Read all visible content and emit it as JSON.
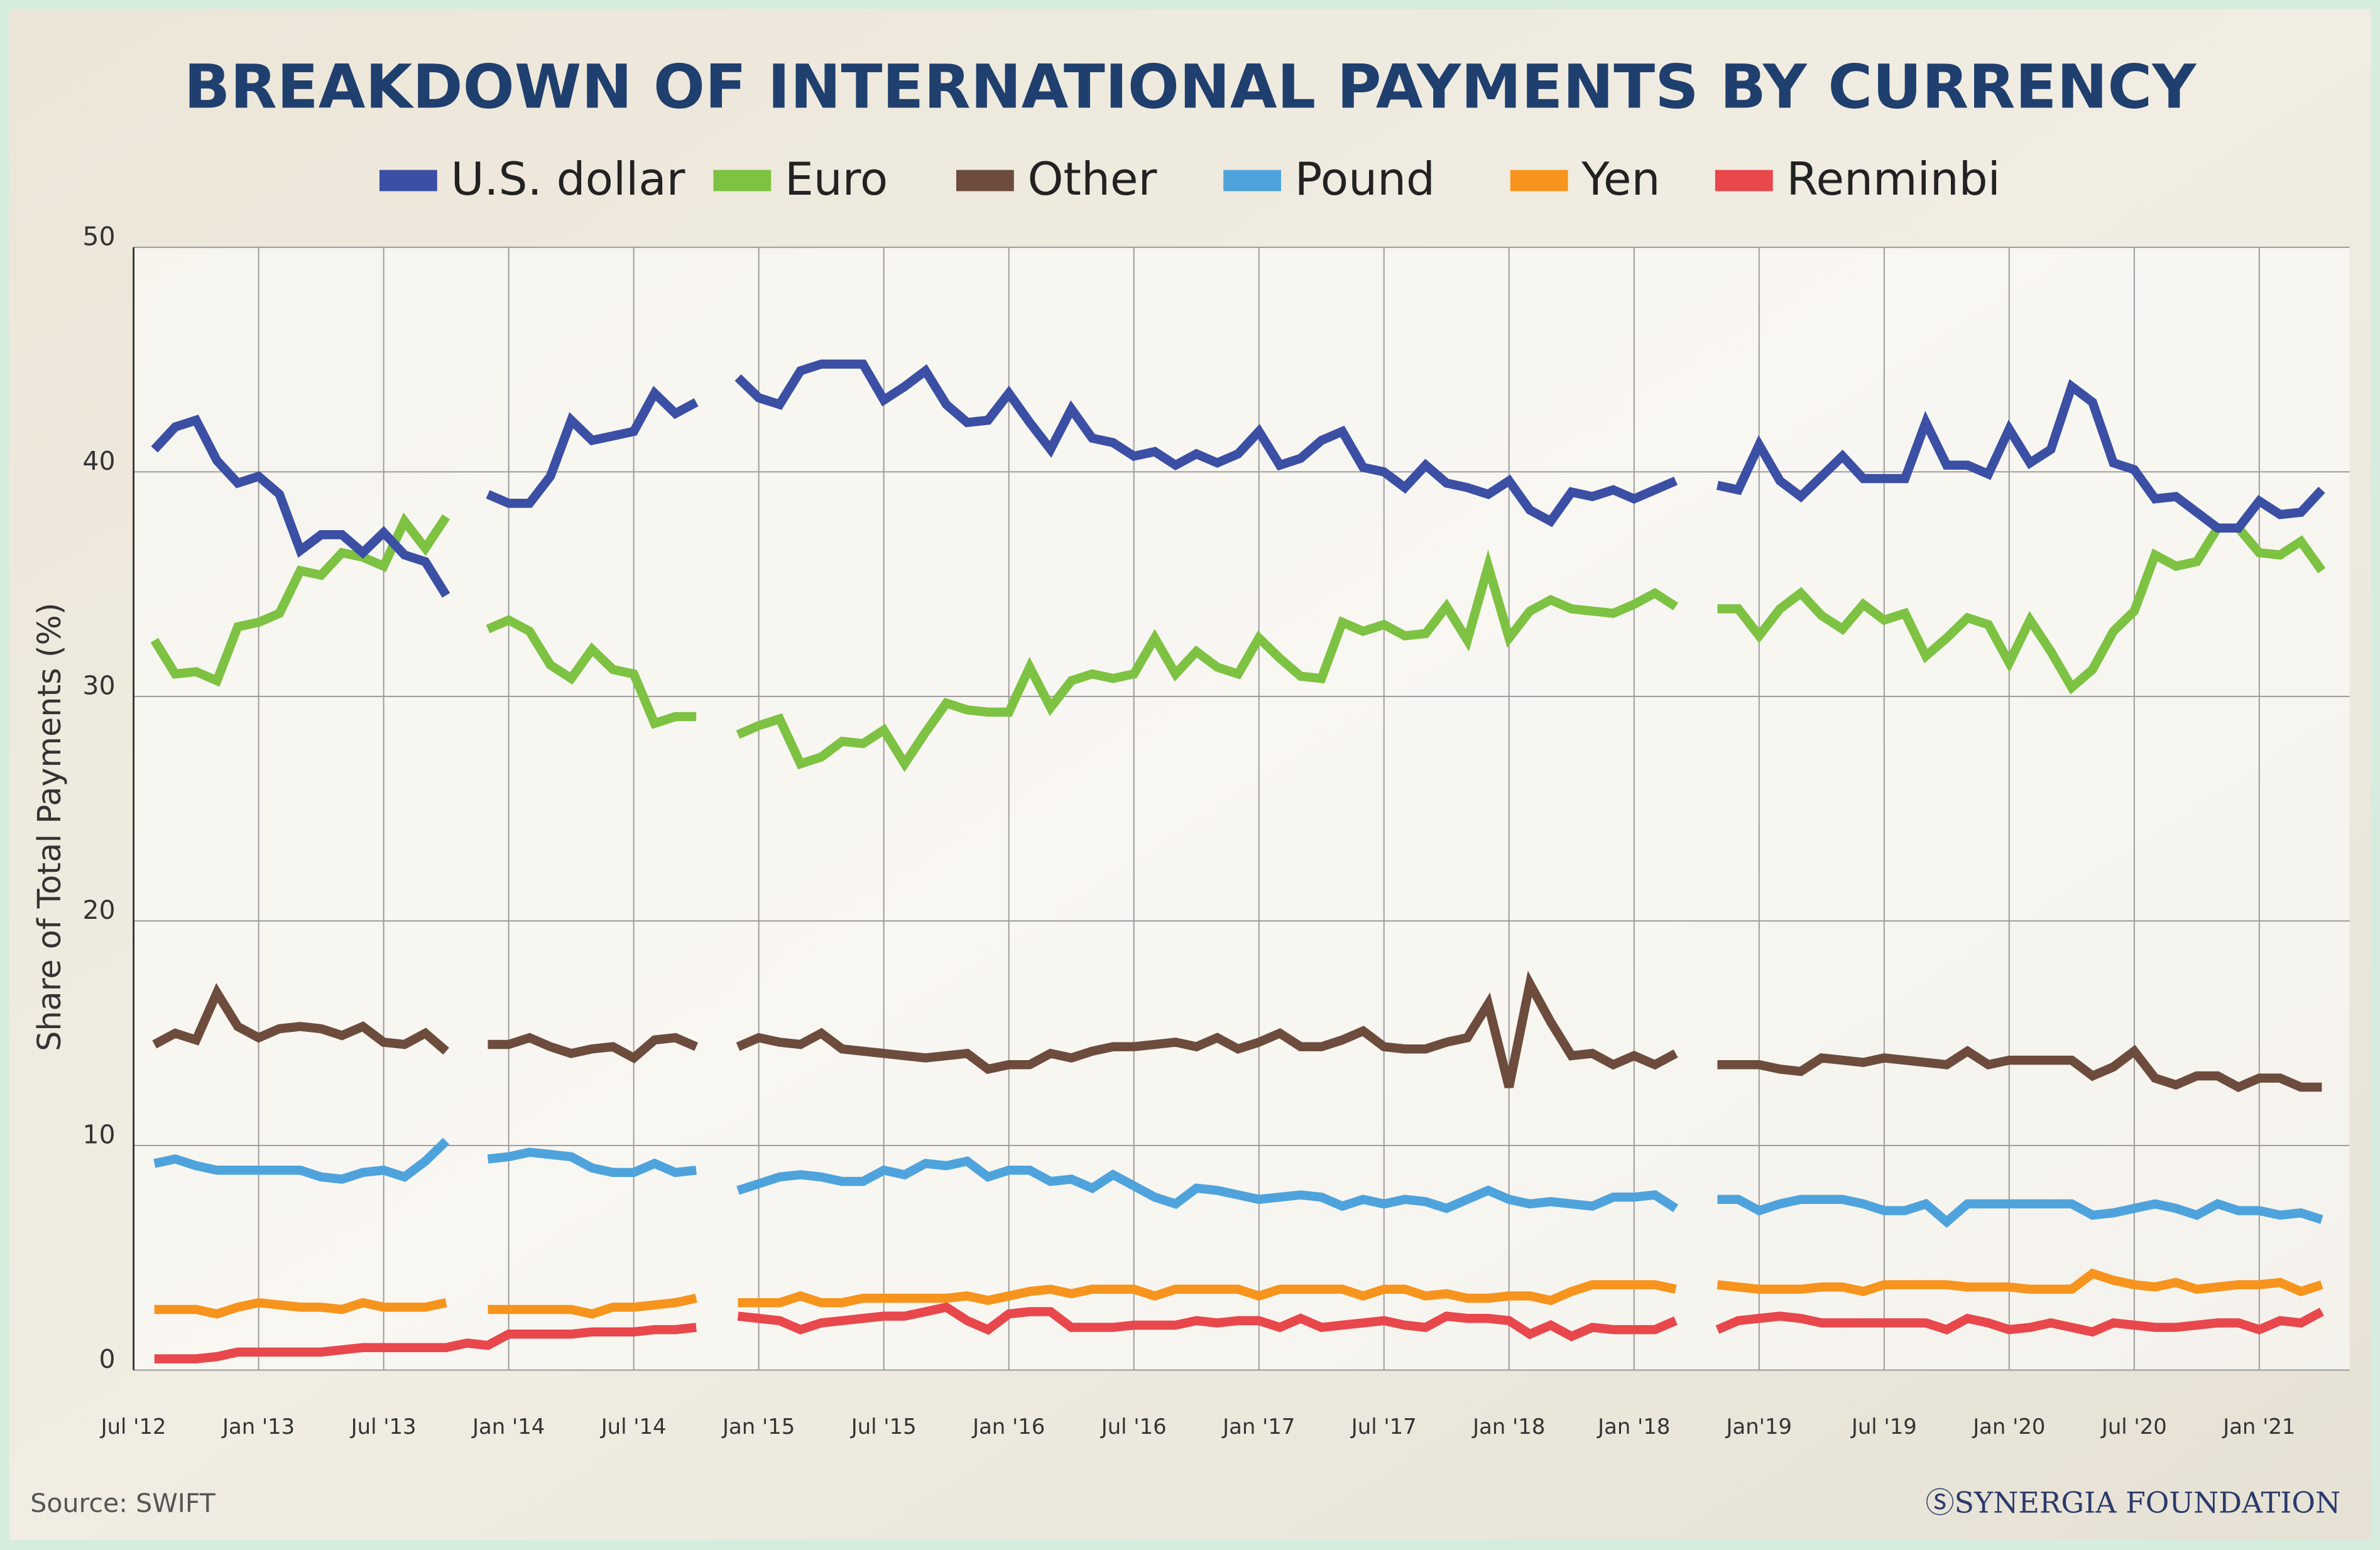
{
  "chart_data": {
    "type": "line",
    "title": "BREAKDOWN OF INTERNATIONAL PAYMENTS BY CURRENCY",
    "y_label": "Share of Total Payments (%)",
    "source": "Source: SWIFT",
    "credit": "ⓈSYNERGIA FOUNDATION",
    "ylim": [
      0,
      50
    ],
    "yticks": [
      0,
      10,
      20,
      30,
      40,
      50
    ],
    "grid": true,
    "legend": "top",
    "categories": [
      "Jul '12",
      null,
      null,
      null,
      null,
      null,
      "Jan '13",
      null,
      null,
      null,
      null,
      null,
      "Jul '13",
      null,
      null,
      null,
      null,
      null,
      "Jan '14",
      null,
      null,
      null,
      null,
      null,
      "Jul '14",
      null,
      null,
      null,
      null,
      null,
      "Jan '15",
      null,
      null,
      null,
      null,
      null,
      "Jul '15",
      null,
      null,
      null,
      null,
      null,
      "Jan '16",
      null,
      null,
      null,
      null,
      null,
      "Jul '16",
      null,
      null,
      null,
      null,
      null,
      "Jan '17",
      null,
      null,
      null,
      null,
      null,
      "Jul '17",
      null,
      null,
      null,
      null,
      null,
      "Jan '18",
      null,
      null,
      null,
      null,
      null,
      "Jan '18",
      null,
      null,
      null,
      null,
      null,
      "Jan'19",
      null,
      null,
      null,
      null,
      null,
      "Jul '19",
      null,
      null,
      null,
      null,
      null,
      "Jan '20",
      null,
      null,
      null,
      null,
      null,
      "Jul '20",
      null,
      null,
      null,
      null,
      null,
      "Jan '21",
      null,
      null,
      null
    ],
    "series": [
      {
        "name": "U.S. dollar",
        "color": "#3b4fa4",
        "values": [
          null,
          41,
          42,
          42.3,
          40.5,
          39.5,
          39.8,
          39,
          36.5,
          37.2,
          37.2,
          36.4,
          37.3,
          36.3,
          36,
          34.5,
          null,
          39,
          38.6,
          38.6,
          39.8,
          42.3,
          41.4,
          41.6,
          41.8,
          43.5,
          42.6,
          43.1,
          null,
          44.2,
          43.3,
          43,
          44.5,
          44.8,
          44.8,
          44.8,
          43.2,
          43.8,
          44.5,
          43,
          42.2,
          42.3,
          43.5,
          42.2,
          41,
          42.8,
          41.5,
          41.3,
          40.7,
          40.9,
          40.3,
          40.8,
          40.4,
          40.8,
          41.8,
          40.3,
          40.6,
          41.4,
          41.8,
          40.2,
          40,
          39.3,
          40.3,
          39.5,
          39.3,
          39,
          39.6,
          38.3,
          37.8,
          39.1,
          38.9,
          39.2,
          38.8,
          39.2,
          39.6,
          null,
          39.4,
          39.2,
          41.2,
          39.6,
          38.9,
          39.8,
          40.7,
          39.7,
          39.7,
          39.7,
          42.2,
          40.3,
          40.3,
          39.9,
          41.9,
          40.4,
          41,
          43.8,
          43.1,
          40.4,
          40.1,
          38.8,
          38.9,
          38.2,
          37.5,
          37.5,
          38.7,
          38.1,
          38.2,
          39.2
        ]
      },
      {
        "name": "Euro",
        "color": "#7dc242",
        "values": [
          null,
          32.5,
          31,
          31.1,
          30.7,
          33.1,
          33.3,
          33.7,
          35.6,
          35.4,
          36.4,
          36.2,
          35.8,
          37.8,
          36.6,
          38,
          null,
          33,
          33.4,
          32.9,
          31.4,
          30.8,
          32.1,
          31.2,
          31,
          28.8,
          29.1,
          29.1,
          null,
          28.3,
          28.7,
          29,
          27,
          27.3,
          28,
          27.9,
          28.5,
          27,
          28.4,
          29.7,
          29.4,
          29.3,
          29.3,
          31.3,
          29.5,
          30.7,
          31,
          30.8,
          31,
          32.6,
          31,
          32,
          31.3,
          31,
          32.6,
          31.7,
          30.9,
          30.8,
          33.3,
          32.9,
          33.2,
          32.7,
          32.8,
          34,
          32.5,
          35.8,
          32.6,
          33.8,
          34.3,
          33.9,
          33.8,
          33.7,
          34.1,
          34.6,
          34,
          null,
          33.9,
          33.9,
          32.7,
          33.9,
          34.6,
          33.6,
          33,
          34.1,
          33.4,
          33.7,
          31.8,
          32.6,
          33.5,
          33.2,
          31.5,
          33.4,
          32,
          30.4,
          31.2,
          32.9,
          33.8,
          36.3,
          35.8,
          36,
          37.5,
          37.5,
          36.4,
          36.3,
          36.9,
          35.6
        ]
      },
      {
        "name": "Other",
        "color": "#6d4c3d",
        "values": [
          null,
          14.5,
          15,
          14.7,
          16.8,
          15.3,
          14.8,
          15.2,
          15.3,
          15.2,
          14.9,
          15.3,
          14.6,
          14.5,
          15,
          14.2,
          null,
          14.5,
          14.5,
          14.8,
          14.4,
          14.1,
          14.3,
          14.4,
          13.9,
          14.7,
          14.8,
          14.4,
          null,
          14.4,
          14.8,
          14.6,
          14.5,
          15,
          14.3,
          14.2,
          14.1,
          14,
          13.9,
          14,
          14.1,
          13.4,
          13.6,
          13.6,
          14.1,
          13.9,
          14.2,
          14.4,
          14.4,
          14.5,
          14.6,
          14.4,
          14.8,
          14.3,
          14.6,
          15,
          14.4,
          14.4,
          14.7,
          15.1,
          14.4,
          14.3,
          14.3,
          14.6,
          14.8,
          16.3,
          12.6,
          17.2,
          15.5,
          14,
          14.1,
          13.6,
          14,
          13.6,
          14.1,
          null,
          13.6,
          13.6,
          13.6,
          13.4,
          13.3,
          13.9,
          13.8,
          13.7,
          13.9,
          13.8,
          13.7,
          13.6,
          14.2,
          13.6,
          13.8,
          13.8,
          13.8,
          13.8,
          13.1,
          13.5,
          14.2,
          13,
          12.7,
          13.1,
          13.1,
          12.6,
          13,
          13,
          12.6,
          12.6
        ]
      },
      {
        "name": "Pound",
        "color": "#4fa3dc",
        "values": [
          null,
          9.2,
          9.4,
          9.1,
          8.9,
          8.9,
          8.9,
          8.9,
          8.9,
          8.6,
          8.5,
          8.8,
          8.9,
          8.6,
          9.3,
          10.2,
          null,
          9.4,
          9.5,
          9.7,
          9.6,
          9.5,
          9,
          8.8,
          8.8,
          9.2,
          8.8,
          8.9,
          null,
          8,
          8.3,
          8.6,
          8.7,
          8.6,
          8.4,
          8.4,
          8.9,
          8.7,
          9.2,
          9.1,
          9.3,
          8.6,
          8.9,
          8.9,
          8.4,
          8.5,
          8.1,
          8.7,
          8.2,
          7.7,
          7.4,
          8.1,
          8,
          7.8,
          7.6,
          7.7,
          7.8,
          7.7,
          7.3,
          7.6,
          7.4,
          7.6,
          7.5,
          7.2,
          7.6,
          8,
          7.6,
          7.4,
          7.5,
          7.4,
          7.3,
          7.7,
          7.7,
          7.8,
          7.2,
          null,
          7.6,
          7.6,
          7.1,
          7.4,
          7.6,
          7.6,
          7.6,
          7.4,
          7.1,
          7.1,
          7.4,
          6.6,
          7.4,
          7.4,
          7.4,
          7.4,
          7.4,
          7.4,
          6.9,
          7,
          7.2,
          7.4,
          7.2,
          6.9,
          7.4,
          7.1,
          7.1,
          6.9,
          7,
          6.7
        ]
      },
      {
        "name": "Yen",
        "color": "#f7941d",
        "values": [
          null,
          2.7,
          2.7,
          2.7,
          2.5,
          2.8,
          3,
          2.9,
          2.8,
          2.8,
          2.7,
          3,
          2.8,
          2.8,
          2.8,
          3,
          null,
          2.7,
          2.7,
          2.7,
          2.7,
          2.7,
          2.5,
          2.8,
          2.8,
          2.9,
          3,
          3.2,
          null,
          3,
          3,
          3,
          3.3,
          3,
          3,
          3.2,
          3.2,
          3.2,
          3.2,
          3.2,
          3.3,
          3.1,
          3.3,
          3.5,
          3.6,
          3.4,
          3.6,
          3.6,
          3.6,
          3.3,
          3.6,
          3.6,
          3.6,
          3.6,
          3.3,
          3.6,
          3.6,
          3.6,
          3.6,
          3.3,
          3.6,
          3.6,
          3.3,
          3.4,
          3.2,
          3.2,
          3.3,
          3.3,
          3.1,
          3.5,
          3.8,
          3.8,
          3.8,
          3.8,
          3.6,
          null,
          3.8,
          3.7,
          3.6,
          3.6,
          3.6,
          3.7,
          3.7,
          3.5,
          3.8,
          3.8,
          3.8,
          3.8,
          3.7,
          3.7,
          3.7,
          3.6,
          3.6,
          3.6,
          4.3,
          4,
          3.8,
          3.7,
          3.9,
          3.6,
          3.7,
          3.8,
          3.8,
          3.9,
          3.5,
          3.8
        ]
      },
      {
        "name": "Renminbi",
        "color": "#e8474c",
        "values": [
          null,
          0.5,
          0.5,
          0.5,
          0.6,
          0.8,
          0.8,
          0.8,
          0.8,
          0.8,
          0.9,
          1,
          1,
          1,
          1,
          1,
          1.2,
          1.1,
          1.6,
          1.6,
          1.6,
          1.6,
          1.7,
          1.7,
          1.7,
          1.8,
          1.8,
          1.9,
          null,
          2.4,
          2.3,
          2.2,
          1.8,
          2.1,
          2.2,
          2.3,
          2.4,
          2.4,
          2.6,
          2.8,
          2.2,
          1.8,
          2.5,
          2.6,
          2.6,
          1.9,
          1.9,
          1.9,
          2,
          2,
          2,
          2.2,
          2.1,
          2.2,
          2.2,
          1.9,
          2.3,
          1.9,
          2,
          2.1,
          2.2,
          2,
          1.9,
          2.4,
          2.3,
          2.3,
          2.2,
          1.6,
          2,
          1.5,
          1.9,
          1.8,
          1.8,
          1.8,
          2.2,
          null,
          1.8,
          2.2,
          2.3,
          2.4,
          2.3,
          2.1,
          2.1,
          2.1,
          2.1,
          2.1,
          2.1,
          1.8,
          2.3,
          2.1,
          1.8,
          1.9,
          2.1,
          1.9,
          1.7,
          2.1,
          2,
          1.9,
          1.9,
          2,
          2.1,
          2.1,
          1.8,
          2.2,
          2.1,
          2.6
        ]
      }
    ]
  }
}
